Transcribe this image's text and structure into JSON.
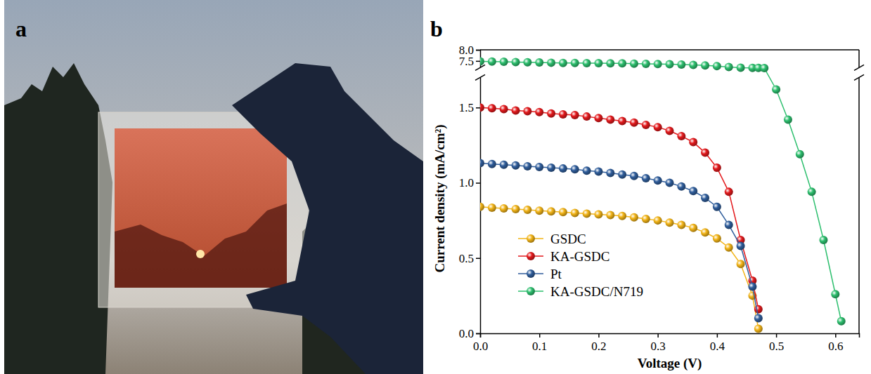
{
  "chart_data": {
    "type": "line",
    "panel_label": "b",
    "x_label": "Voltage (V)",
    "y_label": "Current density (mA/cm²)",
    "x": [
      0,
      0.02,
      0.04,
      0.06,
      0.08,
      0.1,
      0.12,
      0.14,
      0.16,
      0.18,
      0.2,
      0.22,
      0.24,
      0.26,
      0.28,
      0.3,
      0.32,
      0.34,
      0.36,
      0.38,
      0.4,
      0.42,
      0.44,
      0.46,
      0.47,
      0.48,
      0.5,
      0.52,
      0.54,
      0.56,
      0.58,
      0.6,
      0.61
    ],
    "series": [
      {
        "name": "GSDC",
        "color": "#f2b417",
        "marker": "sphere",
        "values": [
          0.84,
          0.835,
          0.83,
          0.825,
          0.82,
          0.815,
          0.81,
          0.805,
          0.8,
          0.795,
          0.79,
          0.785,
          0.78,
          0.77,
          0.76,
          0.75,
          0.735,
          0.72,
          0.7,
          0.67,
          0.63,
          0.57,
          0.46,
          0.25,
          0.03,
          null,
          null,
          null,
          null,
          null,
          null,
          null,
          null
        ]
      },
      {
        "name": "KA-GSDC",
        "color": "#e3191c",
        "marker": "sphere",
        "values": [
          1.5,
          1.495,
          1.49,
          1.48,
          1.475,
          1.47,
          1.46,
          1.455,
          1.45,
          1.44,
          1.43,
          1.42,
          1.41,
          1.4,
          1.385,
          1.37,
          1.345,
          1.31,
          1.27,
          1.2,
          1.1,
          0.94,
          0.62,
          0.35,
          0.16,
          null,
          null,
          null,
          null,
          null,
          null,
          null,
          null
        ]
      },
      {
        "name": "Pt",
        "color": "#2f5d9b",
        "marker": "sphere",
        "values": [
          1.13,
          1.125,
          1.12,
          1.115,
          1.11,
          1.105,
          1.1,
          1.095,
          1.09,
          1.08,
          1.075,
          1.065,
          1.055,
          1.045,
          1.03,
          1.015,
          1.0,
          0.975,
          0.945,
          0.9,
          0.84,
          0.72,
          0.58,
          0.31,
          0.1,
          null,
          null,
          null,
          null,
          null,
          null,
          null,
          null
        ]
      },
      {
        "name": "KA-GSDC/N719",
        "color": "#2dbf6e",
        "marker": "sphere",
        "values": [
          7.48,
          7.47,
          7.46,
          7.45,
          7.44,
          7.43,
          7.42,
          7.41,
          7.41,
          7.4,
          7.4,
          7.39,
          7.39,
          7.38,
          7.37,
          7.36,
          7.35,
          7.34,
          7.32,
          7.3,
          7.27,
          7.23,
          7.17,
          7.08,
          7.03,
          6.9,
          1.62,
          1.42,
          1.19,
          0.94,
          0.62,
          0.26,
          0.08
        ]
      }
    ],
    "xlim": [
      0,
      0.64
    ],
    "xticks": [
      {
        "value": 0,
        "label": "0.0"
      },
      0.1,
      0.2,
      0.3,
      0.4,
      0.5,
      0.6
    ],
    "ylim": [
      0,
      8.0
    ],
    "ybreak": [
      1.7,
      7.2
    ],
    "yticks": [
      {
        "value": 0,
        "label": "0.0"
      },
      0.5,
      {
        "value": 1,
        "label": "1.0"
      },
      1.5,
      7.5,
      {
        "value": 8,
        "label": "8.0"
      }
    ],
    "grid": false,
    "legend": "lower left"
  },
  "photo": {
    "panel_label": "a"
  }
}
